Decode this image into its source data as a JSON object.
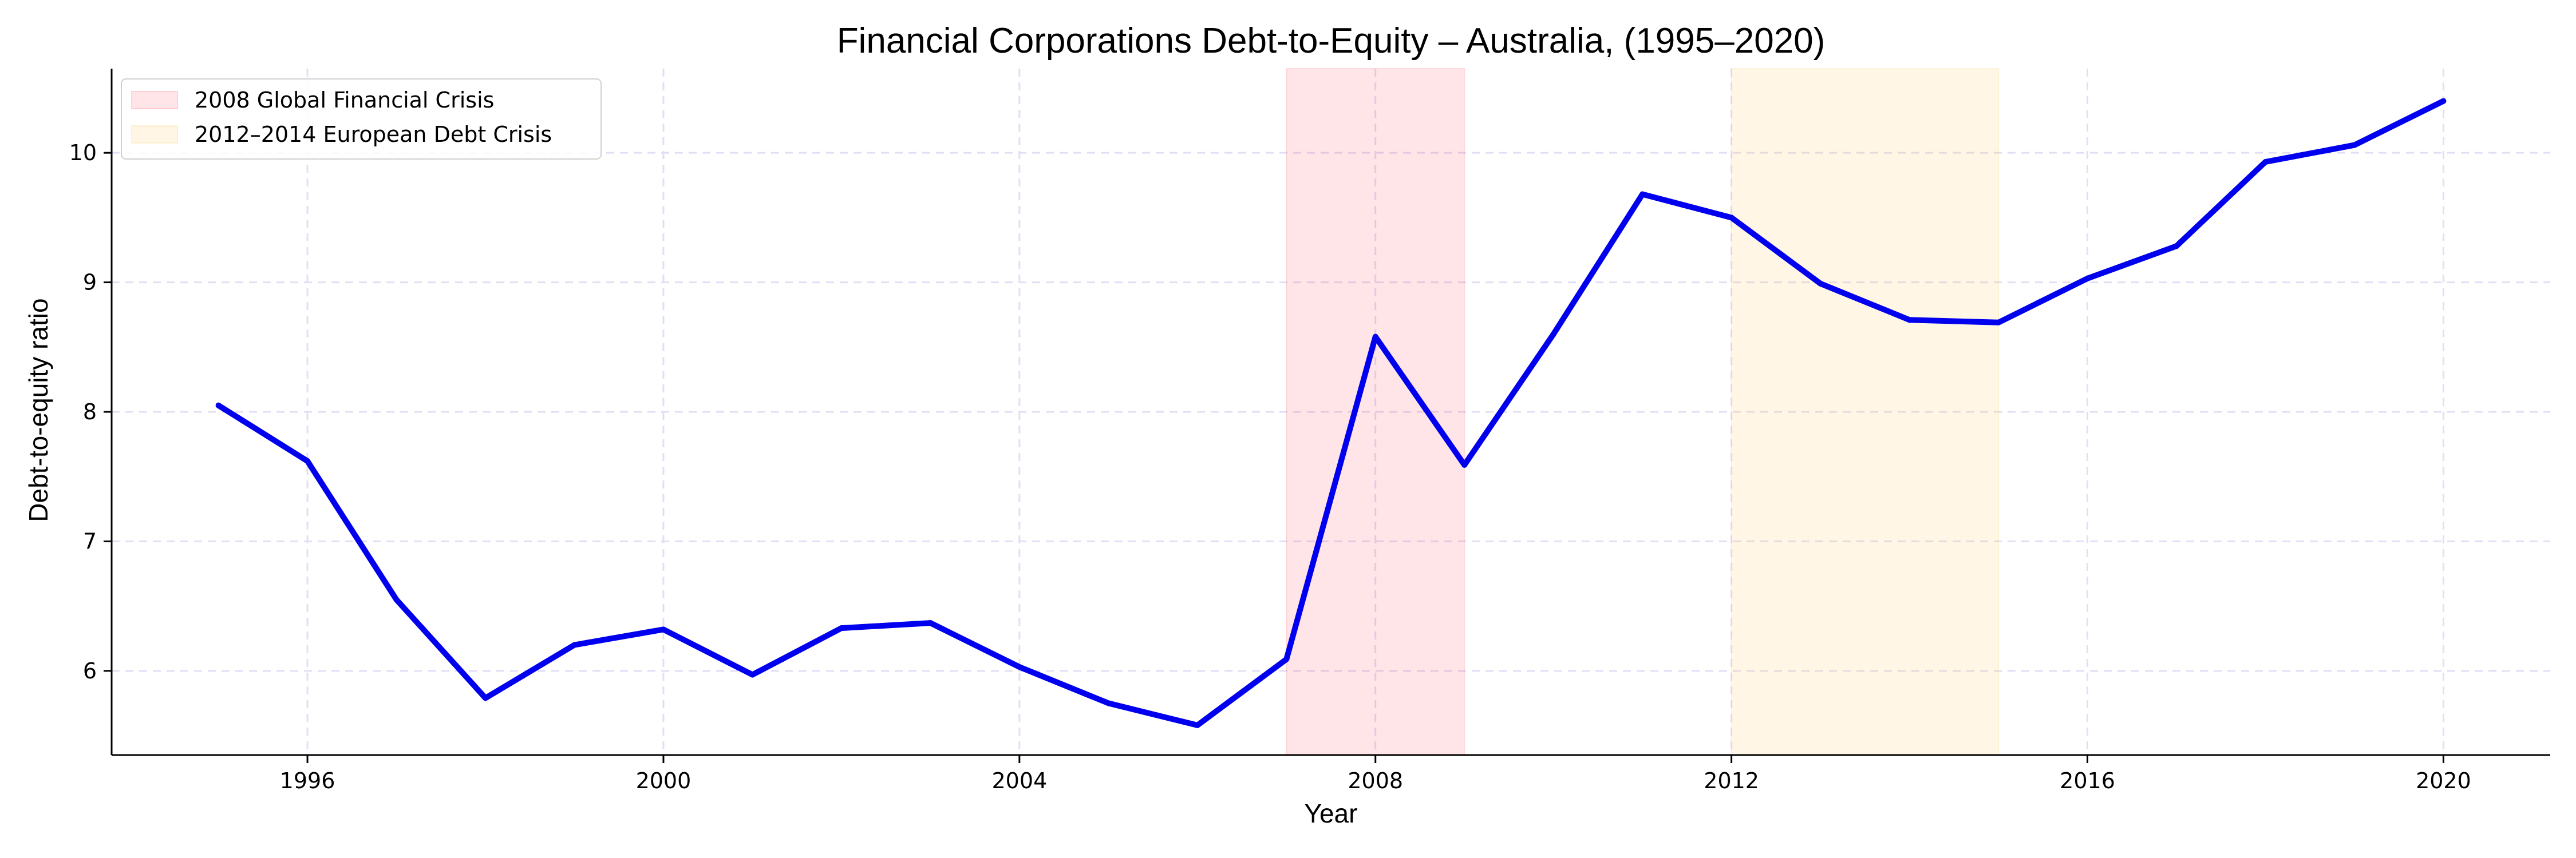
{
  "chart_data": {
    "type": "line",
    "title": "Financial Corporations Debt-to-Equity – Australia, (1995–2020)",
    "xlabel": "Year",
    "ylabel": "Debt-to-equity ratio",
    "xlim": [
      1993.8,
      2021.2
    ],
    "ylim": [
      5.35,
      10.65
    ],
    "xticks": [
      1996,
      2000,
      2004,
      2008,
      2012,
      2016,
      2020
    ],
    "yticks": [
      6,
      7,
      8,
      9,
      10
    ],
    "grid": true,
    "legend_position": "top-left",
    "series": [
      {
        "color": "#0000ee",
        "x": [
          1995,
          1996,
          1997,
          1998,
          1999,
          2000,
          2001,
          2002,
          2003,
          2004,
          2005,
          2006,
          2007,
          2008,
          2009,
          2010,
          2011,
          2012,
          2013,
          2014,
          2015,
          2016,
          2017,
          2018,
          2019,
          2020
        ],
        "y": [
          8.05,
          7.62,
          6.55,
          5.79,
          6.2,
          6.32,
          5.97,
          6.33,
          6.37,
          6.03,
          5.75,
          5.58,
          6.09,
          8.58,
          7.59,
          8.6,
          9.68,
          9.5,
          8.99,
          8.71,
          8.69,
          9.03,
          9.28,
          9.93,
          10.06,
          10.4
        ]
      }
    ],
    "shaded_regions": [
      {
        "label": "2008 Global Financial Crisis",
        "x_start": 2007,
        "x_end": 2009,
        "color": "#ff0020",
        "opacity": 0.1
      },
      {
        "label": "2012–2014 European Debt Crisis",
        "x_start": 2012,
        "x_end": 2015,
        "color": "#ffc860",
        "opacity": 0.16
      }
    ]
  }
}
